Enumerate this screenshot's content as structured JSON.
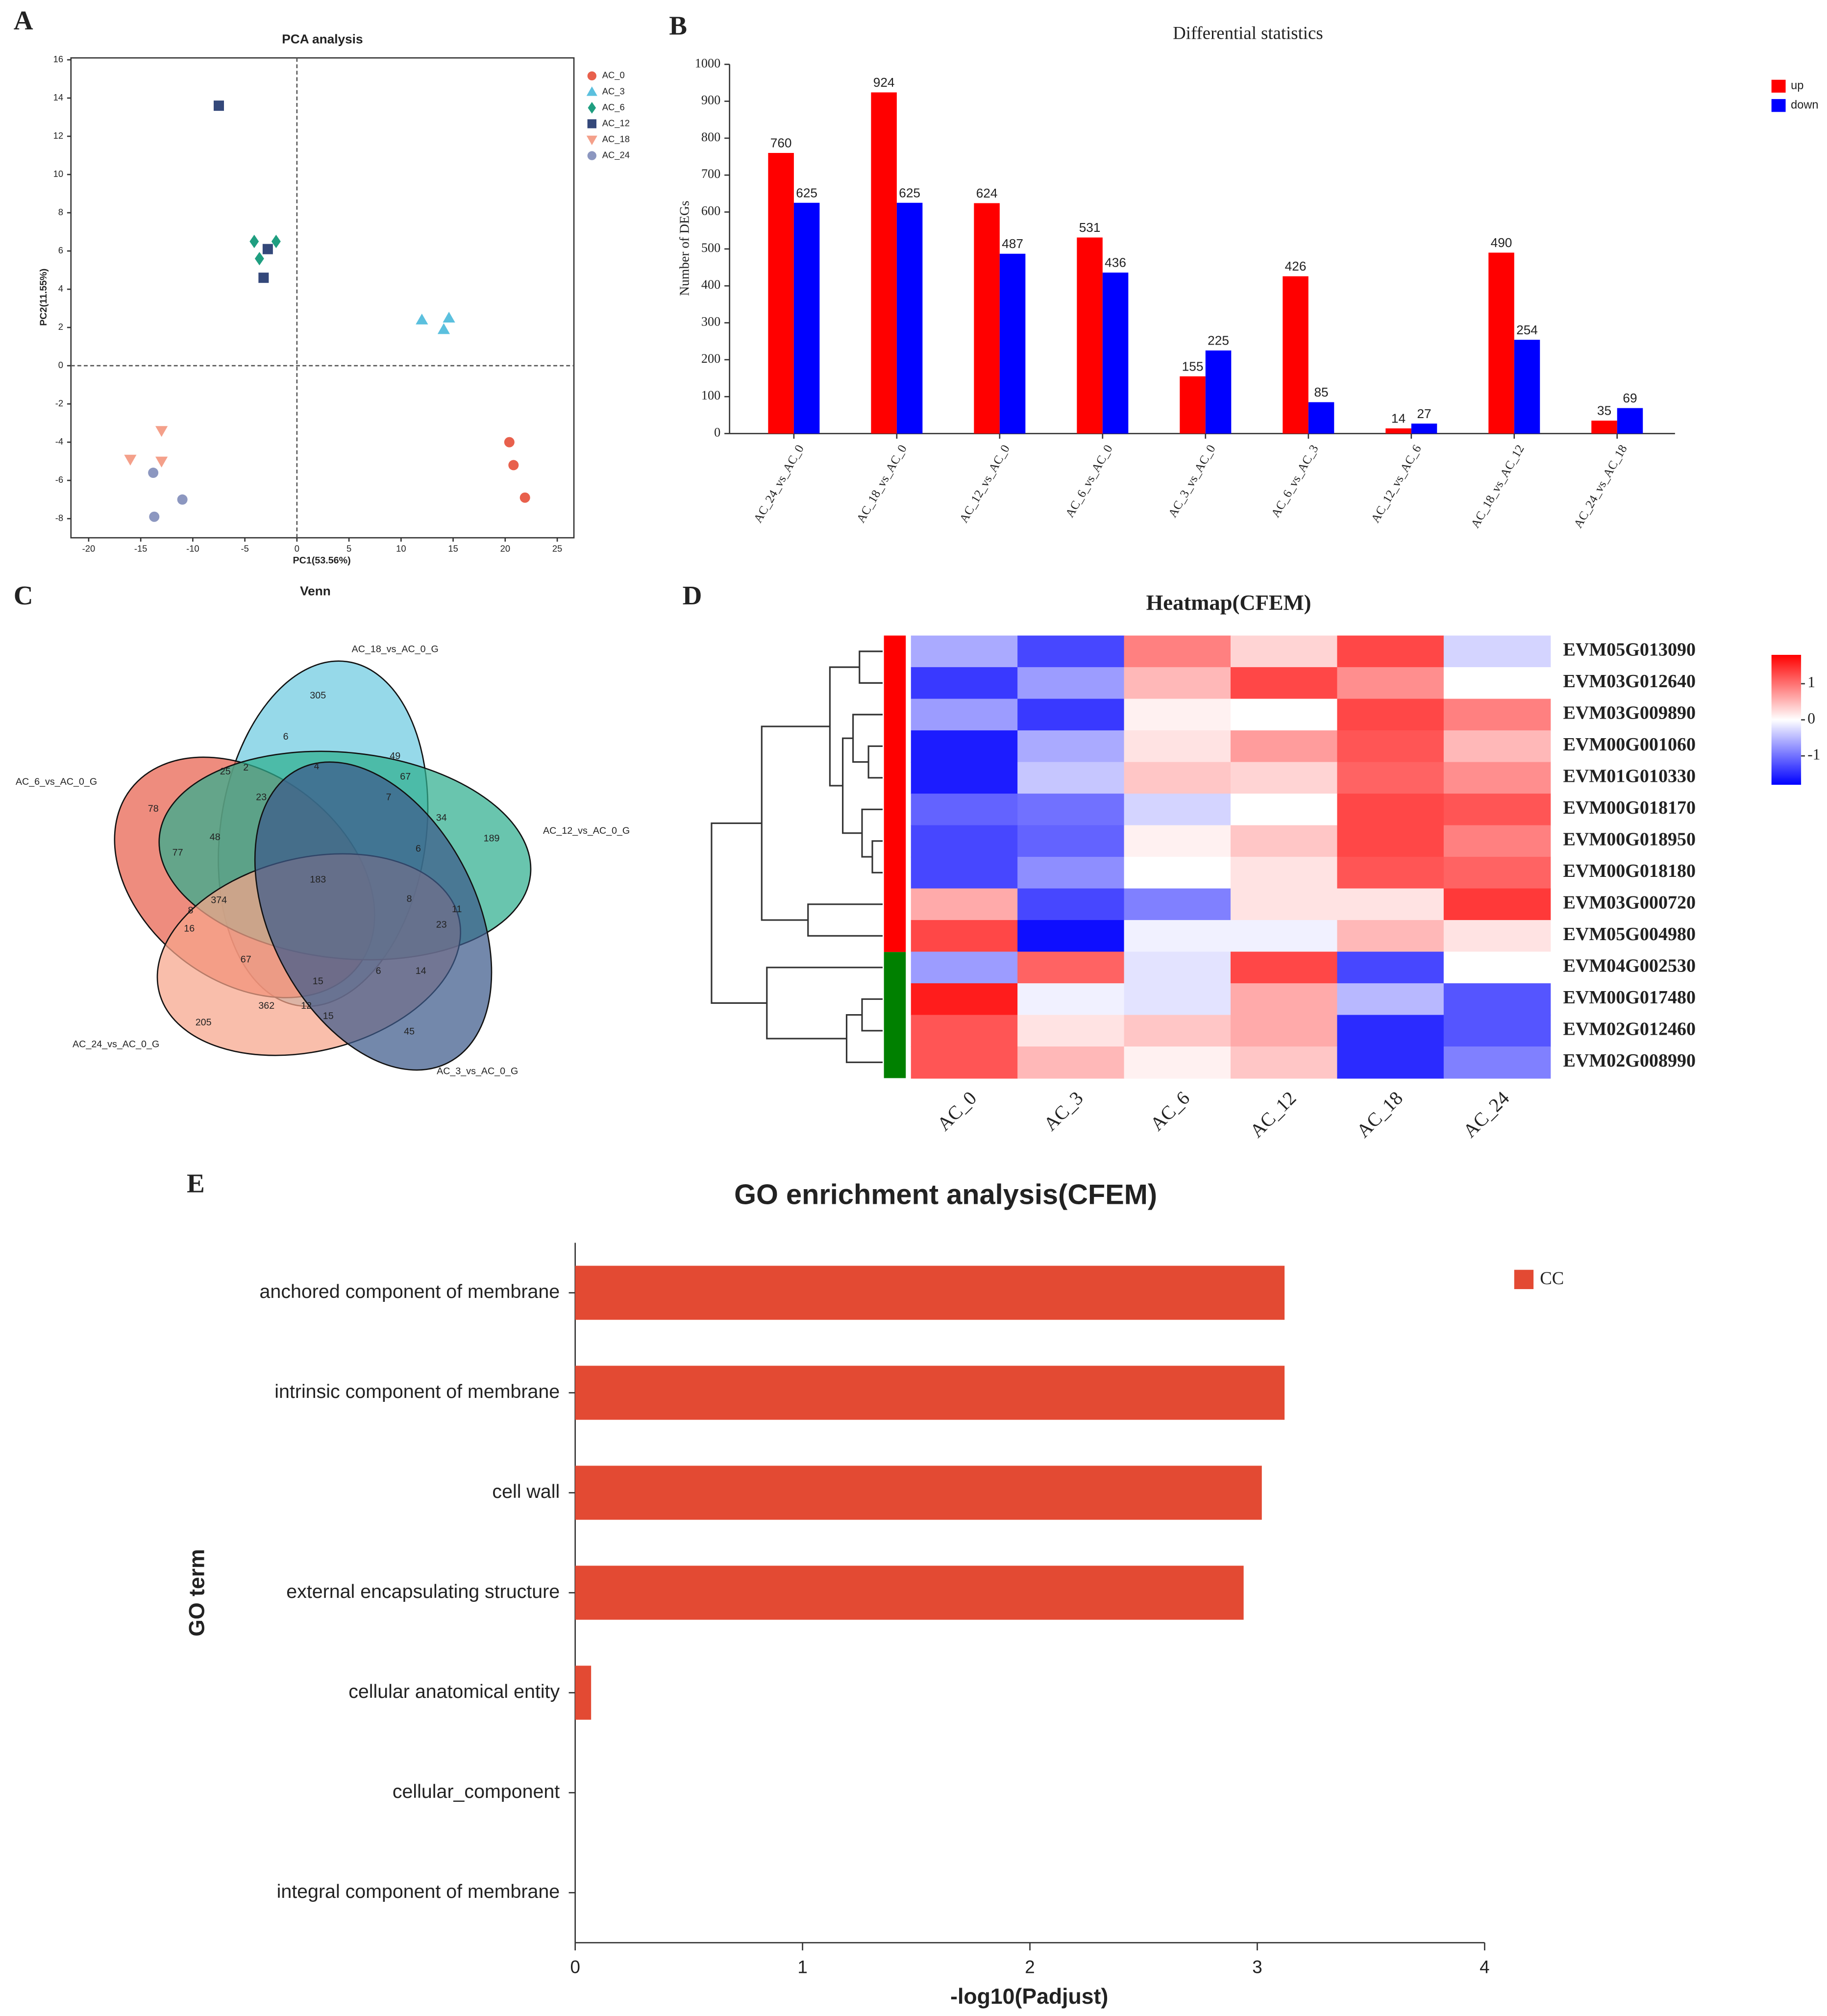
{
  "chart_data": [
    {
      "panel": "A",
      "type": "scatter",
      "title": "PCA analysis",
      "x_label": "PC1(53.56%)",
      "y_label": "PC2(11.55%)",
      "xlim": [
        -21.7,
        26.6
      ],
      "ylim": [
        -9,
        16.1
      ],
      "xticks": [
        -20,
        -15,
        -10,
        -5,
        0,
        5,
        10,
        15,
        20,
        25
      ],
      "yticks": [
        -8,
        -6,
        -4,
        -2,
        0,
        2,
        4,
        6,
        8,
        10,
        12,
        14,
        16
      ],
      "zero_lines": true,
      "series": [
        {
          "name": "AC_0",
          "color": "#e8604c",
          "marker": "circle",
          "x": [
            20.4,
            20.8,
            21.9
          ],
          "y": [
            -4.0,
            -5.2,
            -6.9
          ]
        },
        {
          "name": "AC_3",
          "color": "#5bc0de",
          "marker": "triangle",
          "x": [
            12.0,
            14.6,
            14.1
          ],
          "y": [
            2.4,
            2.5,
            1.9
          ]
        },
        {
          "name": "AC_6",
          "color": "#1f9e80",
          "marker": "diamond",
          "x": [
            -4.1,
            -2.0,
            -3.6
          ],
          "y": [
            6.5,
            6.5,
            5.6
          ]
        },
        {
          "name": "AC_12",
          "color": "#34487a",
          "marker": "square",
          "x": [
            -7.5,
            -2.8,
            -3.2
          ],
          "y": [
            13.6,
            6.1,
            4.6
          ]
        },
        {
          "name": "AC_18",
          "color": "#f4a08a",
          "marker": "triangle-down",
          "x": [
            -13.0,
            -16.0,
            -13.0
          ],
          "y": [
            -3.4,
            -4.9,
            -5.0
          ]
        },
        {
          "name": "AC_24",
          "color": "#8c97c0",
          "marker": "circle",
          "x": [
            -13.8,
            -11.0,
            -13.7
          ],
          "y": [
            -5.6,
            -7.0,
            -7.9
          ]
        }
      ]
    },
    {
      "panel": "B",
      "type": "bar",
      "title": "Differential statistics",
      "y_label": "Number of DEGs",
      "categories": [
        "AC_24_vs_AC_0",
        "AC_18_vs_AC_0",
        "AC_12_vs_AC_0",
        "AC_6_vs_AC_0",
        "AC_3_vs_AC_0",
        "AC_6_vs_AC_3",
        "AC_12_vs_AC_6",
        "AC_18_vs_AC_12",
        "AC_24_vs_AC_18"
      ],
      "series": [
        {
          "name": "up",
          "color": "#ff0000",
          "values": [
            760,
            924,
            624,
            531,
            155,
            426,
            14,
            490,
            35
          ]
        },
        {
          "name": "down",
          "color": "#0000ff",
          "values": [
            625,
            625,
            487,
            436,
            225,
            85,
            27,
            254,
            69
          ]
        }
      ],
      "ylim": [
        0,
        1000
      ],
      "yticks": [
        0,
        100,
        200,
        300,
        400,
        500,
        600,
        700,
        800,
        900,
        1000
      ],
      "legend": "upper right"
    },
    {
      "panel": "C",
      "type": "venn",
      "title": "Venn",
      "sets": [
        {
          "name": "AC_18_vs_AC_0_G",
          "color": "#6ecbe0"
        },
        {
          "name": "AC_6_vs_AC_0_G",
          "color": "#e8604c"
        },
        {
          "name": "AC_12_vs_AC_0_G",
          "color": "#2fae8f"
        },
        {
          "name": "AC_24_vs_AC_0_G",
          "color": "#f6a58a"
        },
        {
          "name": "AC_3_vs_AC_0_G",
          "color": "#3d5a8a"
        }
      ],
      "regions": [
        305,
        6,
        4,
        49,
        67,
        25,
        2,
        23,
        7,
        34,
        189,
        78,
        77,
        48,
        183,
        6,
        8,
        374,
        8,
        23,
        11,
        16,
        67,
        6,
        14,
        15,
        362,
        12,
        15,
        205,
        45
      ]
    },
    {
      "panel": "D",
      "type": "heatmap",
      "title": "Heatmap(CFEM)",
      "rows": [
        "EVM05G013090",
        "EVM03G012640",
        "EVM03G009890",
        "EVM00G001060",
        "EVM01G010330",
        "EVM00G018170",
        "EVM00G018950",
        "EVM00G018180",
        "EVM03G000720",
        "EVM05G004980",
        "EVM04G002530",
        "EVM00G017480",
        "EVM02G012460",
        "EVM02G008990"
      ],
      "columns": [
        "AC_0",
        "AC_3",
        "AC_6",
        "AC_12",
        "AC_18",
        "AC_24"
      ],
      "values": [
        [
          -0.6,
          -1.3,
          0.9,
          0.3,
          1.3,
          -0.3
        ],
        [
          -1.4,
          -0.7,
          0.5,
          1.3,
          0.8,
          0.0
        ],
        [
          -0.7,
          -1.4,
          0.1,
          0.0,
          1.3,
          0.9
        ],
        [
          -1.6,
          -0.6,
          0.2,
          0.7,
          1.2,
          0.5
        ],
        [
          -1.6,
          -0.4,
          0.4,
          0.3,
          1.1,
          0.8
        ],
        [
          -1.1,
          -1.0,
          -0.3,
          0.0,
          1.3,
          1.2
        ],
        [
          -1.3,
          -1.1,
          0.1,
          0.4,
          1.3,
          0.9
        ],
        [
          -1.3,
          -0.8,
          0.0,
          0.2,
          1.2,
          1.1
        ],
        [
          0.6,
          -1.3,
          -0.9,
          0.2,
          0.2,
          1.4
        ],
        [
          1.3,
          -1.7,
          -0.1,
          -0.1,
          0.5,
          0.2
        ],
        [
          -0.7,
          1.1,
          -0.2,
          1.3,
          -1.3,
          0.0
        ],
        [
          1.6,
          -0.1,
          -0.2,
          0.6,
          -0.5,
          -1.2
        ],
        [
          1.2,
          0.2,
          0.4,
          0.6,
          -1.5,
          -1.2
        ],
        [
          1.2,
          0.5,
          0.1,
          0.4,
          -1.5,
          -0.9
        ]
      ],
      "clim": [
        -1.8,
        1.8
      ],
      "cticks": [
        1,
        0,
        -1
      ]
    },
    {
      "panel": "E",
      "type": "barh",
      "title": "GO enrichment analysis(CFEM)",
      "x_label": "-log10(Padjust)",
      "y_label": "GO term",
      "categories": [
        "anchored component of membrane",
        "intrinsic component of membrane",
        "cell wall",
        "external encapsulating structure",
        "cellular anatomical entity",
        "cellular_component",
        "integral component of membrane"
      ],
      "series": [
        {
          "name": "CC",
          "color": "#e34a33",
          "values": [
            3.12,
            3.12,
            3.02,
            2.94,
            0.07,
            0,
            0
          ]
        }
      ],
      "xlim": [
        0,
        4
      ],
      "xticks": [
        0,
        1,
        2,
        3,
        4
      ]
    }
  ]
}
